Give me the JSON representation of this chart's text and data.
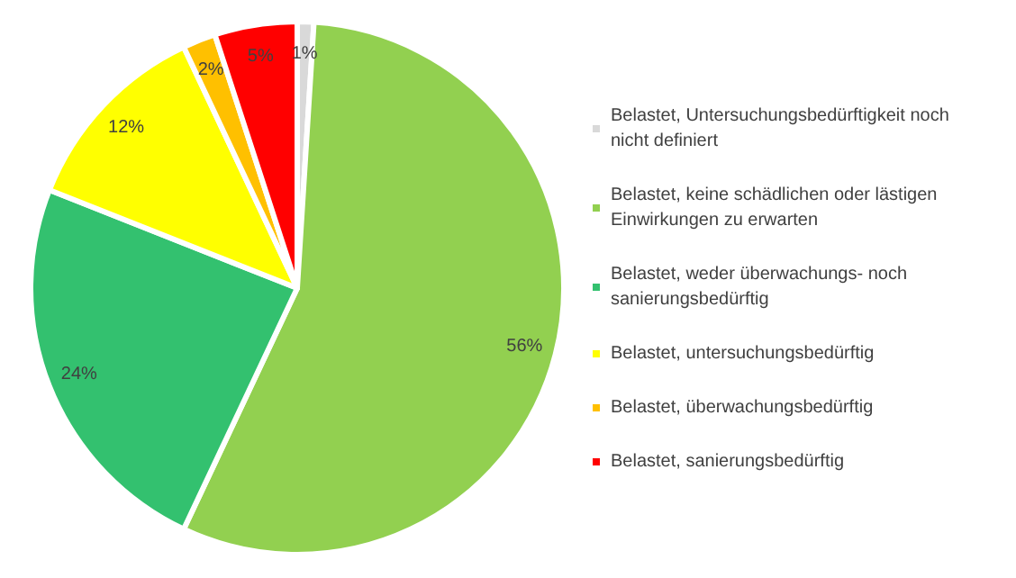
{
  "chart_data": {
    "type": "pie",
    "categories": [
      "Belastet, Untersuchungsbedürftigkeit noch nicht definiert",
      "Belastet, keine schädlichen oder lästigen Einwirkungen zu erwarten",
      "Belastet, weder überwachungs- noch sanierungsbedürftig",
      "Belastet, untersuchungsbedürftig",
      "Belastet, überwachungsbedürftig",
      "Belastet, sanierungsbedürftig"
    ],
    "values": [
      1,
      56,
      24,
      12,
      2,
      5
    ],
    "colors": [
      "#d9d9d9",
      "#92d050",
      "#33c16f",
      "#ffff00",
      "#ffc000",
      "#ff0000"
    ],
    "value_labels": [
      "1%",
      "56%",
      "24%",
      "12%",
      "2%",
      "5%"
    ],
    "legend": "right"
  }
}
